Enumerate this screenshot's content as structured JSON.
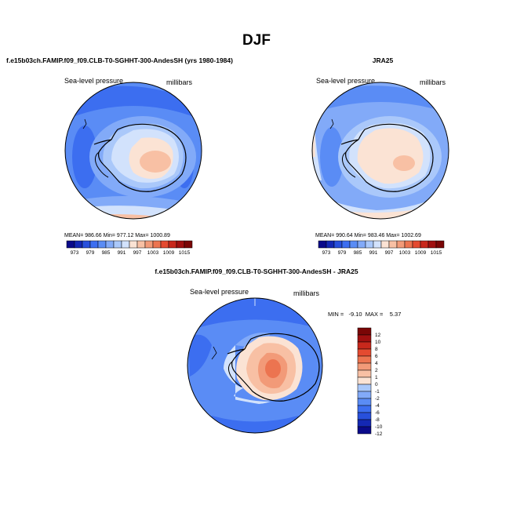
{
  "figure": {
    "title": "DJF",
    "panels": [
      {
        "title": "f.e15b03ch.FAMIP.f09_f09.CLB-T0-SGHHT-300-AndesSH (yrs 1980-1984)",
        "field": "Sea-level pressure",
        "units": "millibars",
        "stats": "MEAN= 986.66   Min= 977.12   Max= 1000.89",
        "colorbar_labels": [
          "973",
          "979",
          "985",
          "991",
          "997",
          "1003",
          "1009",
          "1015"
        ]
      },
      {
        "title": "JRA25",
        "field": "Sea-level pressure",
        "units": "millibars",
        "stats": "MEAN= 990.64   Min= 983.46   Max= 1002.69",
        "colorbar_labels": [
          "973",
          "979",
          "985",
          "991",
          "997",
          "1003",
          "1009",
          "1015"
        ]
      },
      {
        "title": "f.e15b03ch.FAMIP.f09_f09.CLB-T0-SGHHT-300-AndesSH - JRA25",
        "field": "Sea-level pressure",
        "units": "millibars",
        "stats": "MIN =   -9.10  MAX =    5.37",
        "colorbar_labels": [
          "12",
          "10",
          "8",
          "6",
          "4",
          "2",
          "1",
          "0",
          "-1",
          "-2",
          "-4",
          "-6",
          "-8",
          "-10",
          "-12"
        ]
      }
    ]
  },
  "colors": {
    "abs_palette": [
      "#0a0a8a",
      "#1428b4",
      "#2850dc",
      "#3c6ef0",
      "#5a8cf5",
      "#82aaf8",
      "#aac8fa",
      "#d2e2fc",
      "#fbe3d4",
      "#f8c0a4",
      "#f29a78",
      "#ec7450",
      "#e44a30",
      "#c8281c",
      "#a01010",
      "#7a0606"
    ],
    "diff_palette": [
      "#7a0606",
      "#a01010",
      "#c8281c",
      "#e44a30",
      "#ec7450",
      "#f29a78",
      "#f8c0a4",
      "#fbe3d4",
      "#aac8fa",
      "#82aaf8",
      "#5a8cf5",
      "#3c6ef0",
      "#2850dc",
      "#1428b4",
      "#0a0a8a"
    ]
  }
}
